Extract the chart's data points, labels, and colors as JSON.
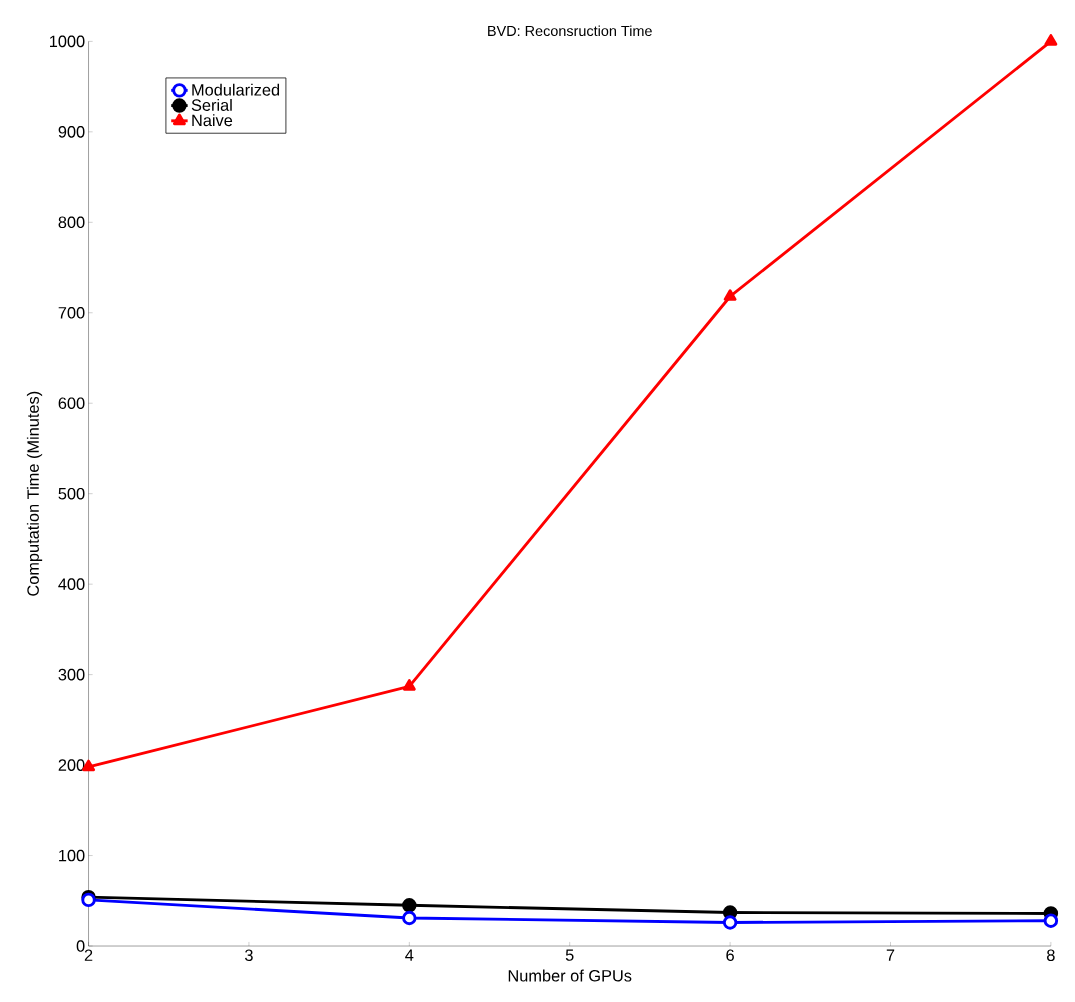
{
  "chart_data": {
    "type": "line",
    "title": "BVD: Reconsruction Time",
    "xlabel": "Number of GPUs",
    "ylabel": "Computation Time (Minutes)",
    "x": [
      2,
      4,
      6,
      8
    ],
    "series": [
      {
        "name": "Modularized",
        "color": "#0000ff",
        "marker": "circle",
        "values": [
          51,
          31,
          26,
          28
        ]
      },
      {
        "name": "Serial",
        "color": "#000000",
        "marker": "circle",
        "values": [
          54,
          45,
          37,
          36
        ]
      },
      {
        "name": "Naive",
        "color": "#ff0000",
        "marker": "triangle",
        "values": [
          198,
          287,
          718,
          1000
        ]
      }
    ],
    "xlim": [
      2,
      8
    ],
    "xticks": [
      2,
      3,
      4,
      5,
      6,
      7,
      8
    ],
    "ylim": [
      0,
      1000
    ],
    "yticks": [
      0,
      100,
      200,
      300,
      400,
      500,
      600,
      700,
      800,
      900,
      1000
    ],
    "legend": "top left",
    "grid": false,
    "line_style": "solid"
  }
}
